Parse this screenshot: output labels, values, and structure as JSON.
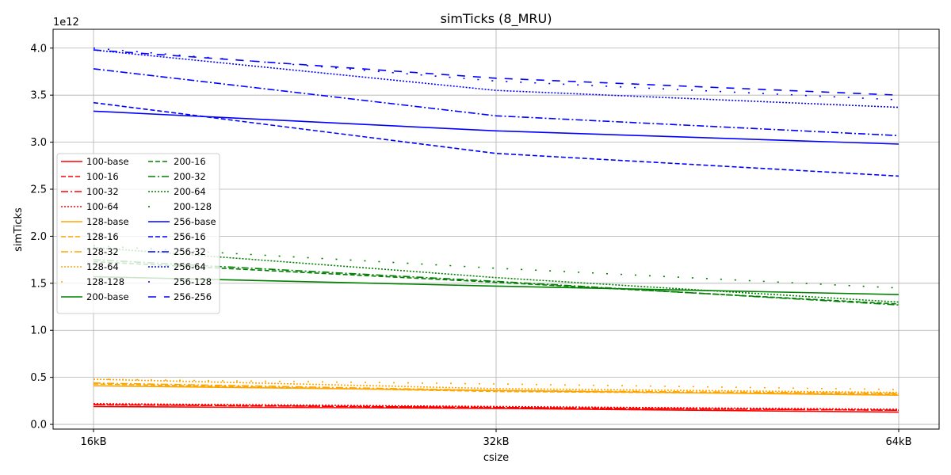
{
  "chart_data": {
    "type": "line",
    "title": "simTicks (8_MRU)",
    "xlabel": "csize",
    "ylabel": "simTicks",
    "y_multiplier_label": "1e12",
    "categories": [
      "16kB",
      "32kB",
      "64kB"
    ],
    "ylim": [
      -0.05,
      4.2
    ],
    "yticks": [
      0.0,
      0.5,
      1.0,
      1.5,
      2.0,
      2.5,
      3.0,
      3.5,
      4.0
    ],
    "ytick_labels": [
      "0.0",
      "0.5",
      "1.0",
      "1.5",
      "2.0",
      "2.5",
      "3.0",
      "3.5",
      "4.0"
    ],
    "grid": true,
    "legend_position": "center-left",
    "legend_columns": 2,
    "series": [
      {
        "name": "100-base",
        "color": "#ff0000",
        "style": "solid",
        "values": [
          0.19,
          0.17,
          0.13
        ]
      },
      {
        "name": "100-16",
        "color": "#ff0000",
        "style": "dashed",
        "values": [
          0.21,
          0.18,
          0.15
        ]
      },
      {
        "name": "100-32",
        "color": "#ff0000",
        "style": "dashdot",
        "values": [
          0.21,
          0.18,
          0.15
        ]
      },
      {
        "name": "100-64",
        "color": "#ff0000",
        "style": "dotted",
        "values": [
          0.22,
          0.19,
          0.16
        ]
      },
      {
        "name": "128-base",
        "color": "#ffa500",
        "style": "solid",
        "values": [
          0.41,
          0.36,
          0.31
        ]
      },
      {
        "name": "128-16",
        "color": "#ffa500",
        "style": "dashed",
        "values": [
          0.43,
          0.35,
          0.32
        ]
      },
      {
        "name": "128-32",
        "color": "#ffa500",
        "style": "dashdot",
        "values": [
          0.44,
          0.36,
          0.33
        ]
      },
      {
        "name": "128-64",
        "color": "#ffa500",
        "style": "dotted",
        "values": [
          0.48,
          0.38,
          0.34
        ]
      },
      {
        "name": "128-128",
        "color": "#ffa500",
        "style": "sparse",
        "values": [
          0.48,
          0.43,
          0.37
        ]
      },
      {
        "name": "200-base",
        "color": "#008000",
        "style": "solid",
        "values": [
          1.57,
          1.47,
          1.38
        ]
      },
      {
        "name": "200-16",
        "color": "#008000",
        "style": "dashed",
        "values": [
          1.73,
          1.51,
          1.28
        ]
      },
      {
        "name": "200-32",
        "color": "#008000",
        "style": "dashdot",
        "values": [
          1.75,
          1.52,
          1.27
        ]
      },
      {
        "name": "200-64",
        "color": "#008000",
        "style": "dotted",
        "values": [
          1.88,
          1.56,
          1.3
        ]
      },
      {
        "name": "200-128",
        "color": "#008000",
        "style": "sparse",
        "values": [
          1.9,
          1.66,
          1.45
        ]
      },
      {
        "name": "256-base",
        "color": "#0000ff",
        "style": "solid",
        "values": [
          3.33,
          3.12,
          2.98
        ]
      },
      {
        "name": "256-16",
        "color": "#0000ff",
        "style": "dashed",
        "values": [
          3.42,
          2.88,
          2.64
        ]
      },
      {
        "name": "256-32",
        "color": "#0000ff",
        "style": "dashdot",
        "values": [
          3.78,
          3.28,
          3.07
        ]
      },
      {
        "name": "256-64",
        "color": "#0000ff",
        "style": "dotted",
        "values": [
          3.98,
          3.55,
          3.37
        ]
      },
      {
        "name": "256-128",
        "color": "#0000ff",
        "style": "sparse",
        "values": [
          4.0,
          3.65,
          3.45
        ]
      },
      {
        "name": "256-256",
        "color": "#0000ff",
        "style": "longdash",
        "values": [
          3.98,
          3.68,
          3.5
        ]
      }
    ]
  }
}
